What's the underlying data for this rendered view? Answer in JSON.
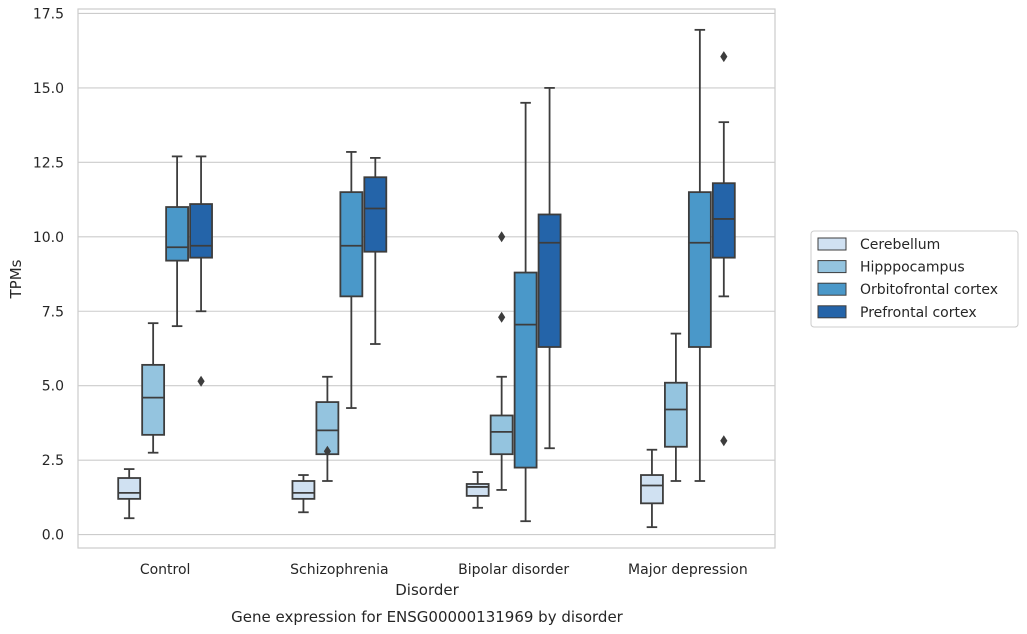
{
  "chart_data": {
    "type": "box",
    "title": "",
    "caption": "Gene expression for ENSG00000131969 by disorder",
    "xlabel": "Disorder",
    "ylabel": "TPMs",
    "ylim": [
      -0.45,
      17.65
    ],
    "yticks": [
      "0.0",
      "2.5",
      "5.0",
      "7.5",
      "10.0",
      "12.5",
      "15.0",
      "17.5"
    ],
    "ytick_values": [
      0,
      2.5,
      5,
      7.5,
      10,
      12.5,
      15,
      17.5
    ],
    "grid": "horizontal",
    "legend_position": "right",
    "categories": [
      "Control",
      "Schizophrenia",
      "Bipolar disorder",
      "Major depression"
    ],
    "series": [
      {
        "name": "Cerebellum",
        "color": "#d0e1f2",
        "boxes": [
          {
            "whislo": 0.55,
            "q1": 1.2,
            "med": 1.4,
            "q3": 1.9,
            "whishi": 2.2,
            "fliers": []
          },
          {
            "whislo": 0.75,
            "q1": 1.2,
            "med": 1.4,
            "q3": 1.8,
            "whishi": 2.0,
            "fliers": []
          },
          {
            "whislo": 0.9,
            "q1": 1.3,
            "med": 1.6,
            "q3": 1.7,
            "whishi": 2.1,
            "fliers": []
          },
          {
            "whislo": 0.25,
            "q1": 1.05,
            "med": 1.65,
            "q3": 2.0,
            "whishi": 2.85,
            "fliers": []
          }
        ]
      },
      {
        "name": "Hipppocampus",
        "color": "#94c4df",
        "boxes": [
          {
            "whislo": 2.75,
            "q1": 3.35,
            "med": 4.6,
            "q3": 5.7,
            "whishi": 7.1,
            "fliers": []
          },
          {
            "whislo": 1.8,
            "q1": 2.7,
            "med": 3.5,
            "q3": 4.45,
            "whishi": 5.3,
            "fliers": [
              2.8
            ]
          },
          {
            "whislo": 1.5,
            "q1": 2.7,
            "med": 3.45,
            "q3": 4.0,
            "whishi": 5.3,
            "fliers": [
              7.3,
              10.0
            ]
          },
          {
            "whislo": 1.8,
            "q1": 2.95,
            "med": 4.2,
            "q3": 5.1,
            "whishi": 6.75,
            "fliers": []
          }
        ]
      },
      {
        "name": "Orbitofrontal cortex",
        "color": "#4a98c9",
        "boxes": [
          {
            "whislo": 7.0,
            "q1": 9.2,
            "med": 9.65,
            "q3": 11.0,
            "whishi": 12.7,
            "fliers": []
          },
          {
            "whislo": 4.25,
            "q1": 8.0,
            "med": 9.7,
            "q3": 11.5,
            "whishi": 12.85,
            "fliers": []
          },
          {
            "whislo": 0.45,
            "q1": 2.25,
            "med": 7.05,
            "q3": 8.8,
            "whishi": 14.5,
            "fliers": []
          },
          {
            "whislo": 1.8,
            "q1": 6.3,
            "med": 9.8,
            "q3": 11.5,
            "whishi": 16.95,
            "fliers": []
          }
        ]
      },
      {
        "name": "Prefrontal cortex",
        "color": "#2464a9",
        "boxes": [
          {
            "whislo": 7.5,
            "q1": 9.3,
            "med": 9.7,
            "q3": 11.1,
            "whishi": 12.7,
            "fliers": [
              5.15
            ]
          },
          {
            "whislo": 6.4,
            "q1": 9.5,
            "med": 10.95,
            "q3": 12.0,
            "whishi": 12.65,
            "fliers": []
          },
          {
            "whislo": 2.9,
            "q1": 6.3,
            "med": 9.8,
            "q3": 10.75,
            "whishi": 15.0,
            "fliers": []
          },
          {
            "whislo": 8.0,
            "q1": 9.3,
            "med": 10.6,
            "q3": 11.8,
            "whishi": 13.85,
            "fliers": [
              3.15,
              16.05
            ]
          }
        ]
      }
    ]
  }
}
